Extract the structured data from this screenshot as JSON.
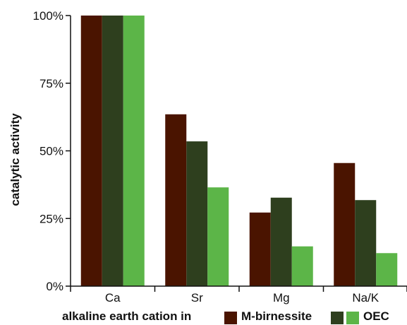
{
  "chart_data": {
    "type": "bar",
    "categories": [
      "Ca",
      "Sr",
      "Mg",
      "Na/K"
    ],
    "series": [
      {
        "name": "M-birnessite",
        "values": [
          100,
          63.5,
          27.2,
          45.5
        ]
      },
      {
        "name": "",
        "values": [
          100,
          53.5,
          32.7,
          31.8
        ]
      },
      {
        "name": "OEC",
        "values": [
          100,
          36.5,
          14.7,
          12.2
        ]
      }
    ],
    "colors": [
      "#4a1400",
      "#2e3f1e",
      "#5cb548"
    ],
    "ylabel": "catalytic activity",
    "xlabel": "alkaline earth cation in",
    "ylim": [
      0,
      100
    ],
    "yticks": [
      0,
      25,
      50,
      75,
      100
    ],
    "ytick_labels": [
      "0%",
      "25%",
      "50%",
      "75%",
      "100%"
    ],
    "grid": false,
    "legend_position": "bottom"
  }
}
